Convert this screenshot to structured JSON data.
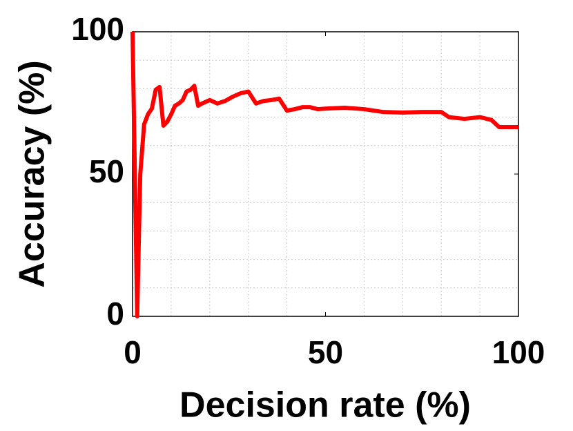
{
  "chart_data": {
    "type": "line",
    "x_label": "Decision rate (%)",
    "y_label": "Accuracy (%)",
    "xlim": [
      0,
      100
    ],
    "ylim": [
      0,
      100
    ],
    "xticks": [
      0,
      50,
      100
    ],
    "yticks": [
      0,
      50,
      100
    ],
    "xminorticks": [
      10,
      20,
      30,
      40,
      60,
      70,
      80,
      90
    ],
    "yminorticks": [
      10,
      20,
      30,
      40,
      60,
      70,
      80,
      90
    ],
    "grid": true,
    "series": [
      {
        "name": "Accuracy",
        "color": "#ff0000",
        "x": [
          0,
          1.2,
          2,
          3,
          4,
          5,
          6,
          7,
          8,
          9,
          10,
          11,
          12,
          13,
          14,
          15,
          16,
          17,
          18,
          20,
          22,
          24,
          26,
          28,
          30,
          32,
          34,
          36,
          38,
          40,
          42,
          44,
          46,
          48,
          50,
          55,
          60,
          65,
          70,
          75,
          80,
          82,
          86,
          90,
          93,
          95,
          100
        ],
        "values": [
          100,
          0,
          50,
          67.5,
          71,
          73,
          79.6,
          80.6,
          67,
          68.4,
          71,
          74,
          74.8,
          76,
          79,
          79.6,
          81,
          74,
          74.8,
          76,
          74.8,
          75.7,
          77.2,
          78.4,
          79,
          74.8,
          75.7,
          76,
          76.5,
          72.3,
          72.8,
          73.5,
          73.5,
          72.8,
          73,
          73.3,
          72.8,
          71.8,
          71.6,
          71.8,
          71.8,
          70,
          69.4,
          70,
          69,
          66.5,
          66.5
        ]
      }
    ]
  }
}
